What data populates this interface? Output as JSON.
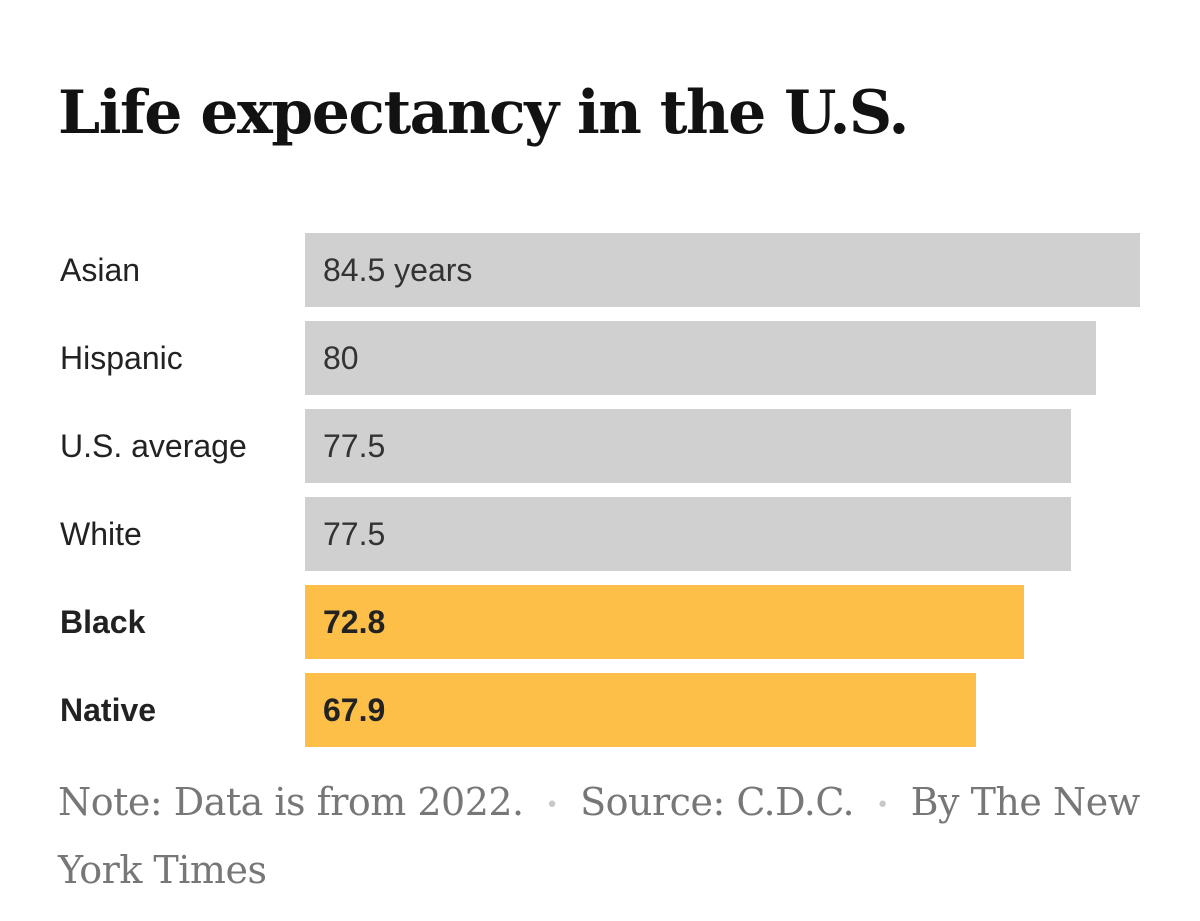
{
  "title": "Life expectancy in the U.S.",
  "chart_data": {
    "type": "bar",
    "orientation": "horizontal",
    "title": "Life expectancy in the U.S.",
    "xlabel": "",
    "ylabel": "",
    "unit": "years",
    "xlim": [
      0,
      84.5
    ],
    "grid": false,
    "legend": "none",
    "categories": [
      "Asian",
      "Hispanic",
      "U.S. average",
      "White",
      "Black",
      "Native"
    ],
    "values": [
      84.5,
      80,
      77.5,
      77.5,
      72.8,
      67.9
    ],
    "value_labels": [
      "84.5 years",
      "80",
      "77.5",
      "77.5",
      "72.8",
      "67.9"
    ],
    "highlighted": [
      false,
      false,
      false,
      false,
      true,
      true
    ],
    "colors": {
      "default": "#d0d0d0",
      "highlight": "#fdbf47"
    }
  },
  "footer": {
    "note": "Note: Data is from 2022.",
    "source": "Source: C.D.C.",
    "byline": "By The New York Times",
    "separator": "•"
  }
}
